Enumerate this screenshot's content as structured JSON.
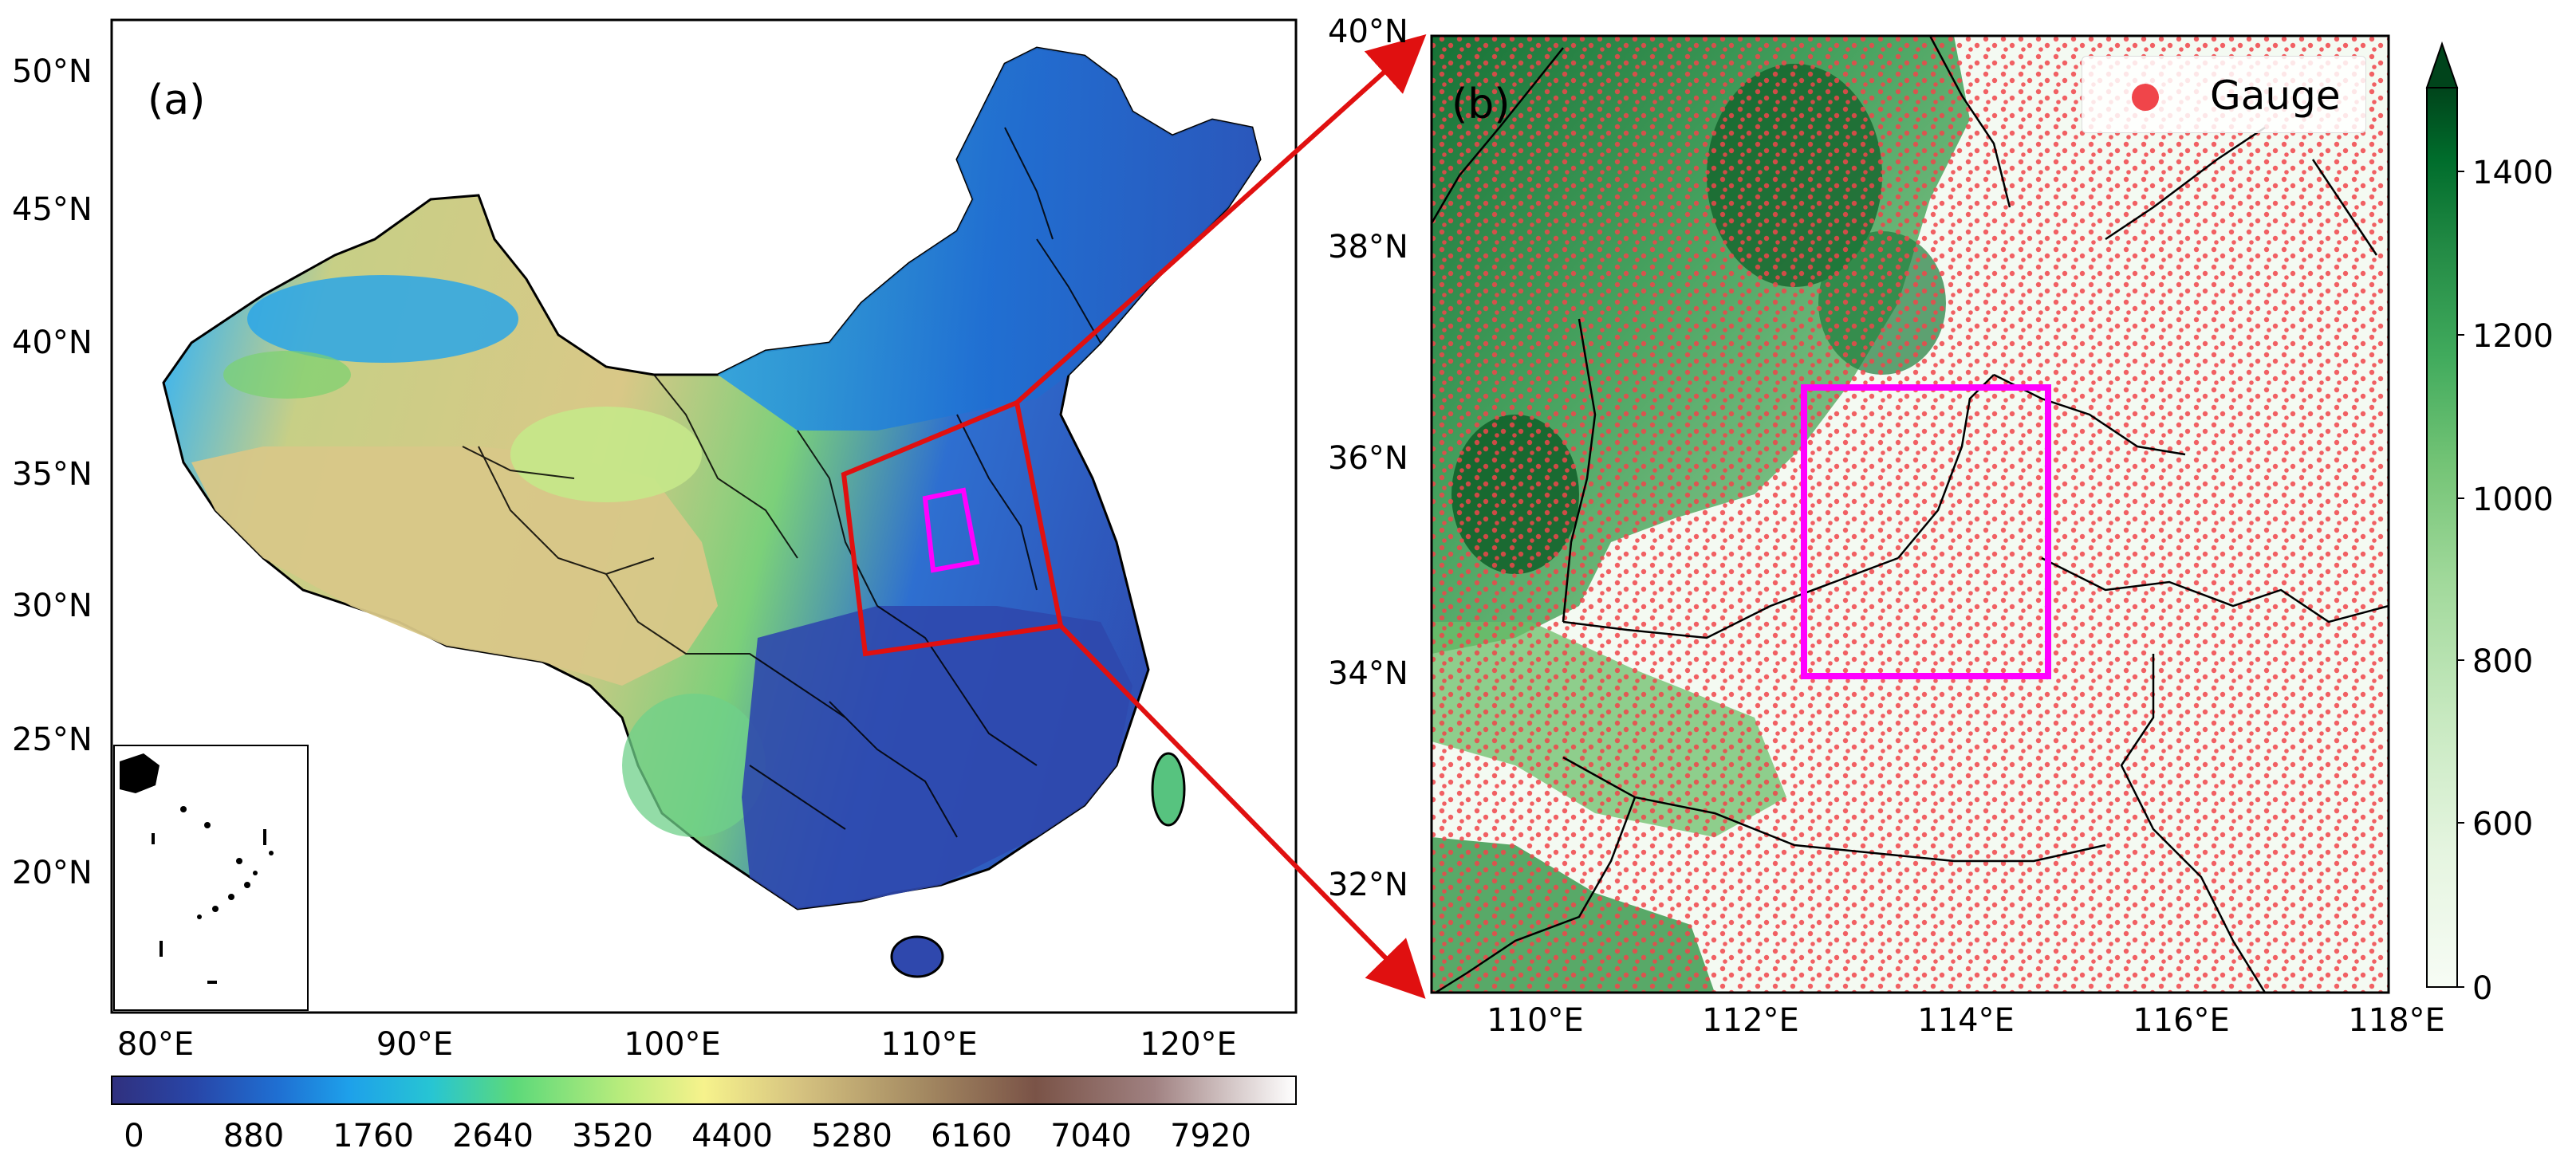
{
  "panel_a": {
    "tag": "(a)",
    "lat_labels": [
      "50°N",
      "45°N",
      "40°N",
      "35°N",
      "30°N",
      "25°N",
      "20°N"
    ],
    "lon_labels": [
      "80°E",
      "90°E",
      "100°E",
      "110°E",
      "120°E"
    ],
    "colorbar_ticks": [
      "0",
      "880",
      "1760",
      "2640",
      "3520",
      "4400",
      "5280",
      "6160",
      "7040",
      "7920"
    ],
    "colormap": [
      "#30307e",
      "#2846a8",
      "#1f6fd2",
      "#1ea0ea",
      "#27c5d3",
      "#5cd97a",
      "#b8ec7c",
      "#f6f28c",
      "#d6c380",
      "#a68c63",
      "#7a5347",
      "#a08181",
      "#d8cccc",
      "#ffffff"
    ],
    "ocean_color": "#ffffff",
    "study_region_color": "#e01010",
    "inner_box_color": "#ff00ff"
  },
  "panel_b": {
    "tag": "(b)",
    "lat_labels": [
      "40°N",
      "38°N",
      "36°N",
      "34°N",
      "32°N"
    ],
    "lon_labels": [
      "110°E",
      "112°E",
      "114°E",
      "116°E",
      "118°E"
    ],
    "legend_label": "Gauge",
    "gauge_color": "#f0454a",
    "inner_box_color": "#ff00ff",
    "colorbar_ticks": [
      "0",
      "600",
      "800",
      "1000",
      "1200",
      "1400"
    ],
    "colormap": [
      "#f7fcf5",
      "#e5f5e0",
      "#c7e9c0",
      "#a1d99b",
      "#74c476",
      "#41ab5d",
      "#238b45",
      "#006d2c",
      "#00441b"
    ]
  },
  "connector_color": "#e01010"
}
